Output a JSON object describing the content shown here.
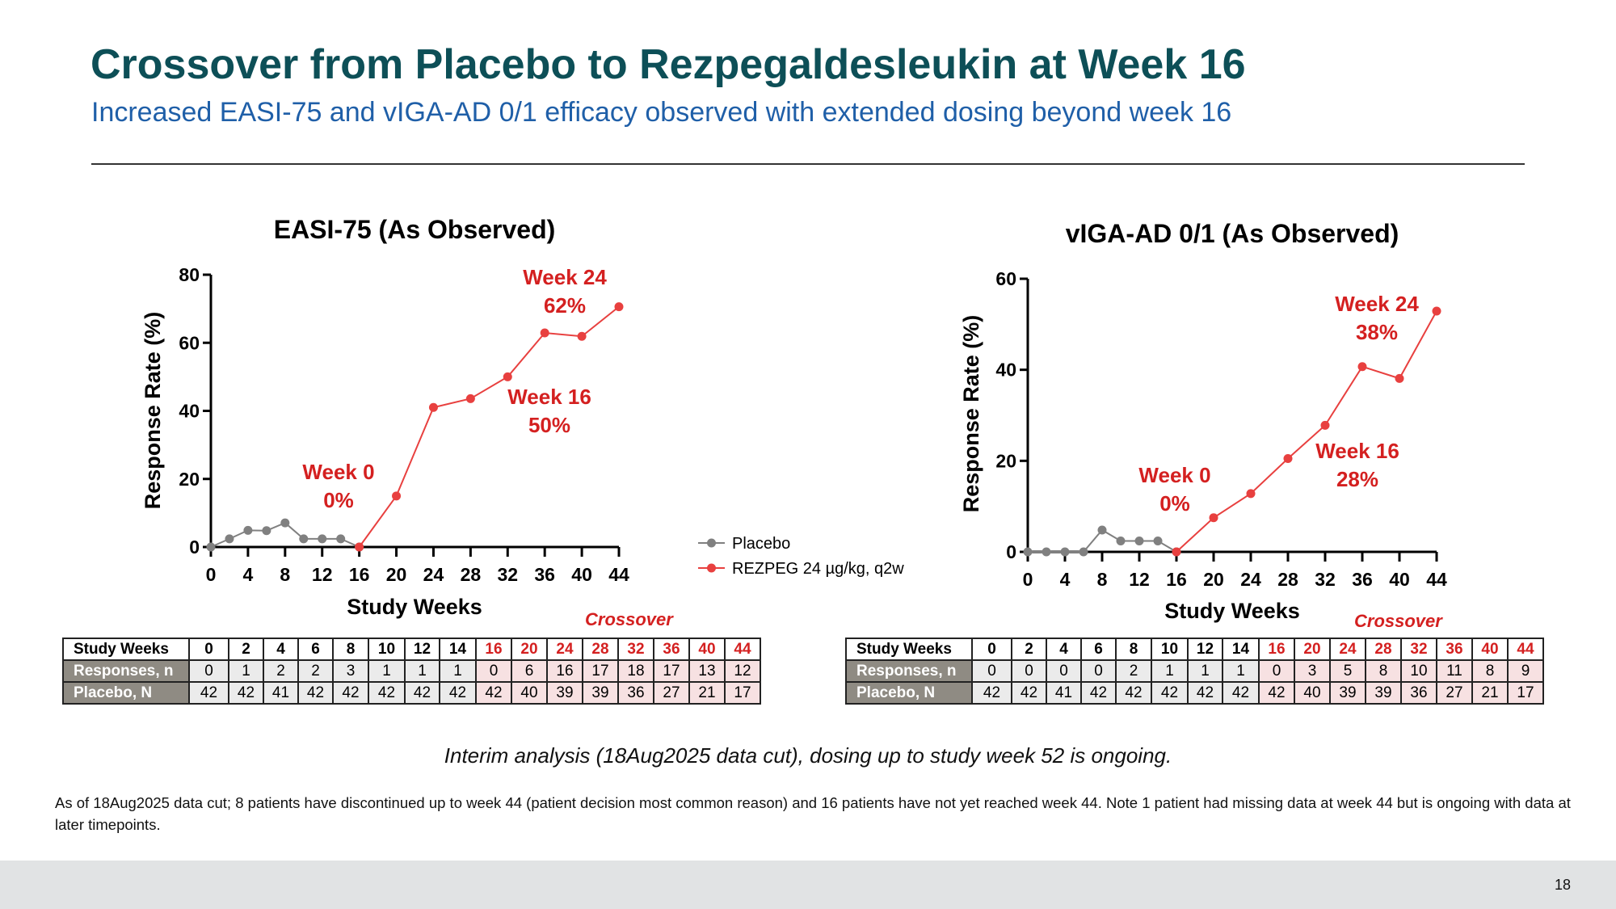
{
  "slide": {
    "title": "Crossover from Placebo to Rezpegaldesleukin at Week 16",
    "subtitle": "Increased EASI-75 and vIGA-AD 0/1 efficacy observed with extended dosing beyond week 16",
    "interim_note": "Interim analysis (18Aug2025 data cut), dosing up to study week 52 is ongoing.",
    "footnote": "As of 18Aug2025 data cut; 8 patients have discontinued up to week 44 (patient decision most common reason) and 16 patients have not yet reached week 44. Note 1 patient had missing data at week 44 but is ongoing with data at later timepoints.",
    "page_number": "18",
    "crossover_label": "Crossover"
  },
  "legend": {
    "placebo": "Placebo",
    "rezpeg": "REZPEG 24 µg/kg, q2w"
  },
  "colors": {
    "placebo": "#808080",
    "rezpeg": "#e8403f",
    "annotation": "#d42020"
  },
  "chart_data": [
    {
      "type": "line",
      "title": "EASI-75 (As Observed)",
      "xlabel": "Study Weeks",
      "ylabel": "Response Rate (%)",
      "xticks": [
        0,
        4,
        8,
        12,
        16,
        20,
        24,
        28,
        32,
        36,
        40,
        44
      ],
      "yticks": [
        0,
        20,
        40,
        60,
        80
      ],
      "xlim": [
        0,
        44
      ],
      "ylim": [
        0,
        80
      ],
      "series": [
        {
          "name": "Placebo",
          "x": [
            0,
            2,
            4,
            6,
            8,
            10,
            12,
            14,
            16
          ],
          "y": [
            0,
            2.4,
            4.9,
            4.8,
            7.1,
            2.4,
            2.4,
            2.4,
            0
          ]
        },
        {
          "name": "REZPEG 24 µg/kg, q2w",
          "x": [
            16,
            20,
            24,
            28,
            32,
            36,
            40,
            44
          ],
          "y": [
            0,
            15,
            41,
            43.6,
            50,
            62.9,
            61.9,
            70.6
          ]
        }
      ],
      "annotations": [
        {
          "line1": "Week 0",
          "line2": "0%",
          "x": 16,
          "y": 0
        },
        {
          "line1": "Week 16",
          "line2": "50%",
          "x": 32,
          "y": 50
        },
        {
          "line1": "Week 24",
          "line2": "62%",
          "x": 40,
          "y": 62
        }
      ],
      "table": {
        "header_label": "Study Weeks",
        "weeks": [
          "0",
          "2",
          "4",
          "6",
          "8",
          "10",
          "12",
          "14",
          "16",
          "20",
          "24",
          "28",
          "32",
          "36",
          "40",
          "44"
        ],
        "rows": [
          {
            "label": "Responses, n",
            "values": [
              "0",
              "1",
              "2",
              "2",
              "3",
              "1",
              "1",
              "1",
              "0",
              "6",
              "16",
              "17",
              "18",
              "17",
              "13",
              "12"
            ]
          },
          {
            "label": "Placebo, N",
            "values": [
              "42",
              "42",
              "41",
              "42",
              "42",
              "42",
              "42",
              "42",
              "42",
              "40",
              "39",
              "39",
              "36",
              "27",
              "21",
              "17"
            ]
          }
        ]
      }
    },
    {
      "type": "line",
      "title": "vIGA-AD 0/1 (As Observed)",
      "xlabel": "Study Weeks",
      "ylabel": "Response Rate (%)",
      "xticks": [
        0,
        4,
        8,
        12,
        16,
        20,
        24,
        28,
        32,
        36,
        40,
        44
      ],
      "yticks": [
        0,
        20,
        40,
        60
      ],
      "xlim": [
        0,
        44
      ],
      "ylim": [
        0,
        60
      ],
      "series": [
        {
          "name": "Placebo",
          "x": [
            0,
            2,
            4,
            6,
            8,
            10,
            12,
            14,
            16
          ],
          "y": [
            0,
            0,
            0,
            0,
            4.8,
            2.4,
            2.4,
            2.4,
            0
          ]
        },
        {
          "name": "REZPEG 24 µg/kg, q2w",
          "x": [
            16,
            20,
            24,
            28,
            32,
            36,
            40,
            44
          ],
          "y": [
            0,
            7.5,
            12.8,
            20.5,
            27.8,
            40.7,
            38.1,
            52.9
          ]
        }
      ],
      "annotations": [
        {
          "line1": "Week 0",
          "line2": "0%",
          "x": 16,
          "y": 0
        },
        {
          "line1": "Week 16",
          "line2": "28%",
          "x": 32,
          "y": 28
        },
        {
          "line1": "Week 24",
          "line2": "38%",
          "x": 40,
          "y": 38
        }
      ],
      "table": {
        "header_label": "Study Weeks",
        "weeks": [
          "0",
          "2",
          "4",
          "6",
          "8",
          "10",
          "12",
          "14",
          "16",
          "20",
          "24",
          "28",
          "32",
          "36",
          "40",
          "44"
        ],
        "rows": [
          {
            "label": "Responses, n",
            "values": [
              "0",
              "0",
              "0",
              "0",
              "2",
              "1",
              "1",
              "1",
              "0",
              "3",
              "5",
              "8",
              "10",
              "11",
              "8",
              "9"
            ]
          },
          {
            "label": "Placebo, N",
            "values": [
              "42",
              "42",
              "41",
              "42",
              "42",
              "42",
              "42",
              "42",
              "42",
              "40",
              "39",
              "39",
              "36",
              "27",
              "21",
              "17"
            ]
          }
        ]
      }
    }
  ]
}
